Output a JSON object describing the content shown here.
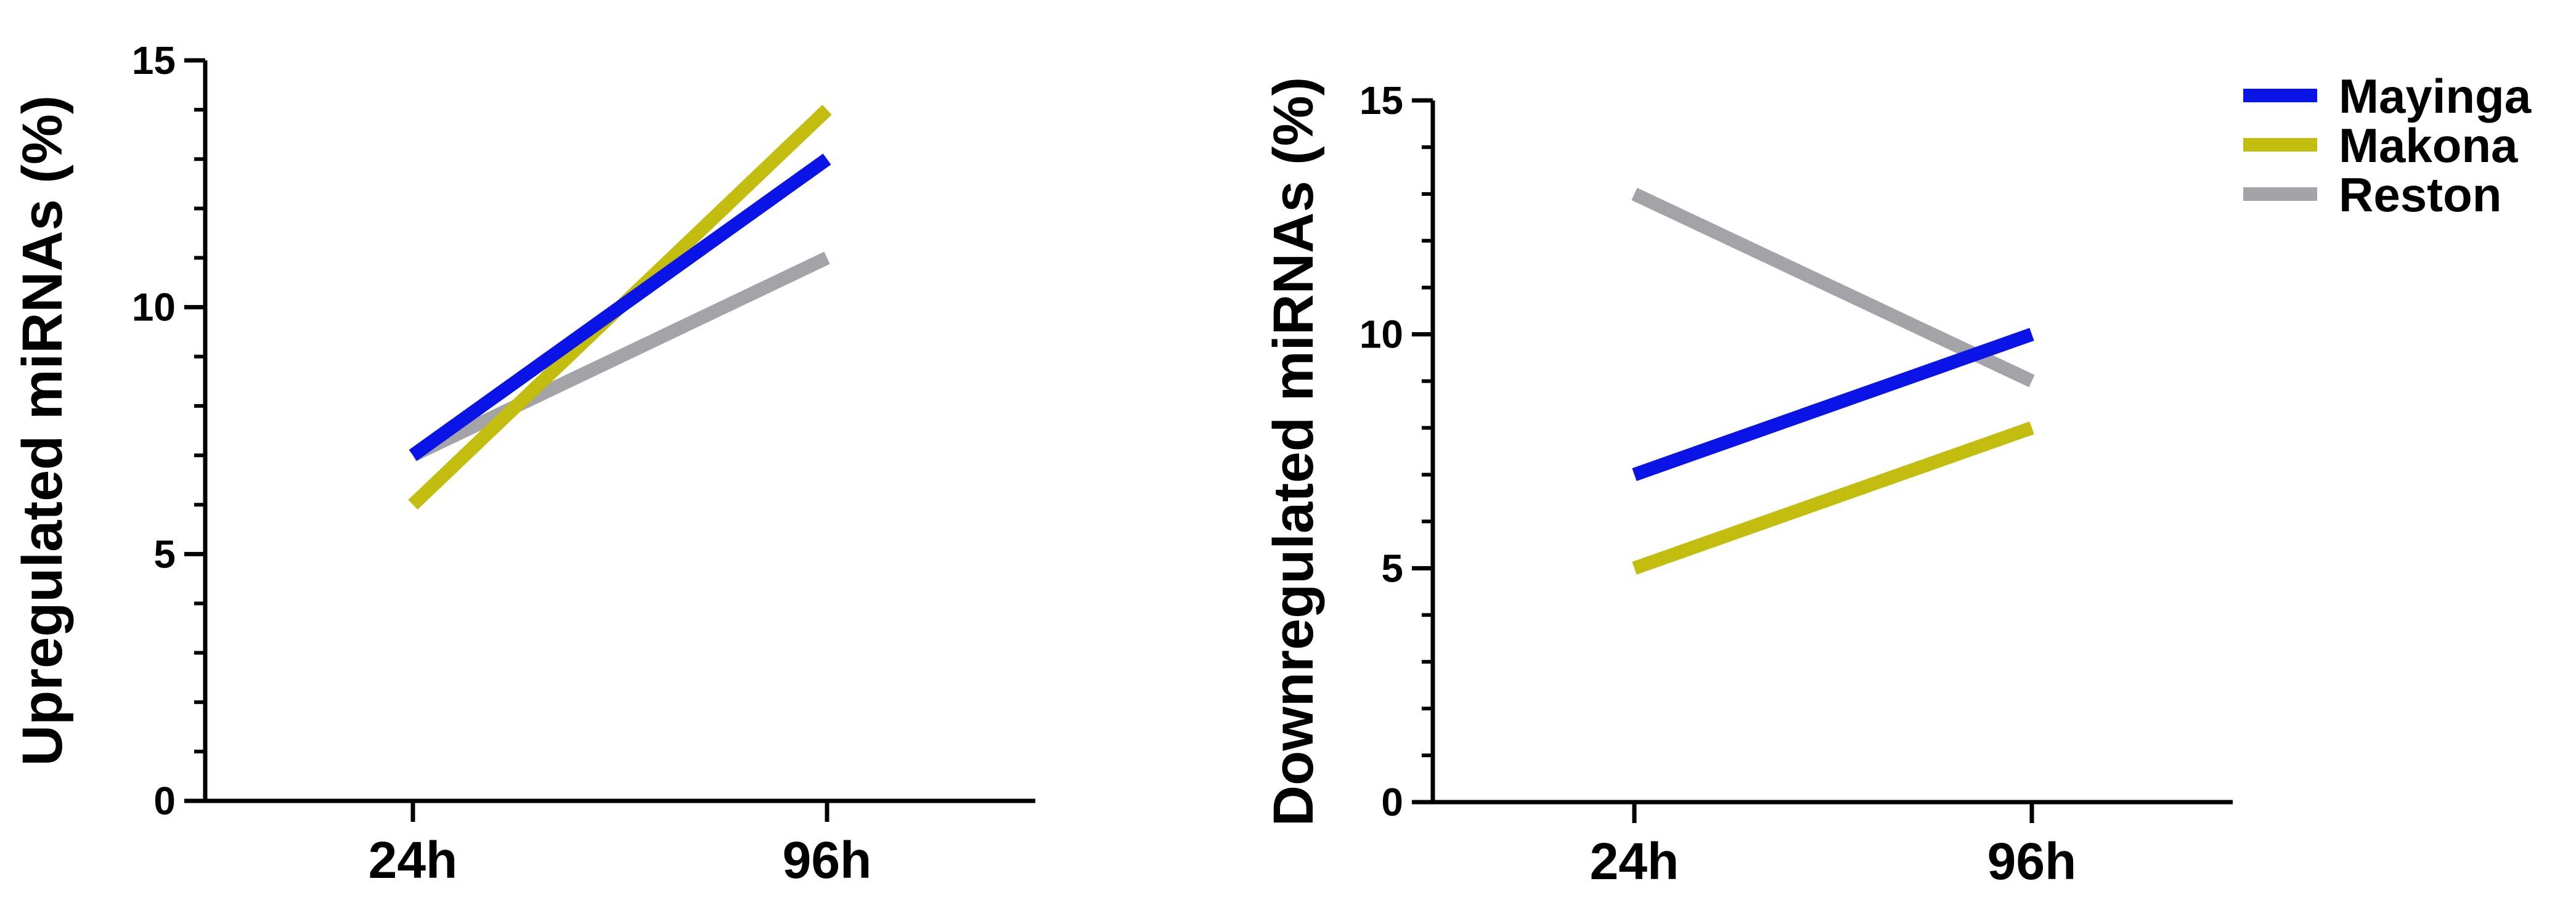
{
  "chart_data": [
    {
      "type": "line",
      "categories": [
        "24h",
        "96h"
      ],
      "ylabel": "Upregulated miRNAs (%)",
      "xlabel": "",
      "ylim": [
        0,
        15
      ],
      "yticks": [
        0,
        5,
        10,
        15
      ],
      "ytick_labels": [
        "0",
        "5",
        "10",
        "15"
      ],
      "grid": false,
      "series": [
        {
          "name": "Mayinga",
          "color": "#0a14e6",
          "values": [
            7,
            13
          ]
        },
        {
          "name": "Makona",
          "color": "#c2bd0e",
          "values": [
            6,
            14
          ]
        },
        {
          "name": "Reston",
          "color": "#a3a3a8",
          "values": [
            7,
            11
          ]
        }
      ]
    },
    {
      "type": "line",
      "categories": [
        "24h",
        "96h"
      ],
      "ylabel": "Downregulated miRNAs (%)",
      "xlabel": "",
      "ylim": [
        0,
        15
      ],
      "yticks": [
        0,
        5,
        10,
        15
      ],
      "ytick_labels": [
        "0",
        "5",
        "10",
        "15"
      ],
      "grid": false,
      "series": [
        {
          "name": "Mayinga",
          "color": "#0a14e6",
          "values": [
            7,
            10
          ]
        },
        {
          "name": "Makona",
          "color": "#c2bd0e",
          "values": [
            5,
            8
          ]
        },
        {
          "name": "Reston",
          "color": "#a3a3a8",
          "values": [
            13,
            9
          ]
        }
      ]
    }
  ],
  "legend": {
    "placement": "top-right",
    "items": [
      {
        "label": "Mayinga",
        "color": "#0a14e6"
      },
      {
        "label": "Makona",
        "color": "#c2bd0e"
      },
      {
        "label": "Reston",
        "color": "#a3a3a8"
      }
    ]
  }
}
